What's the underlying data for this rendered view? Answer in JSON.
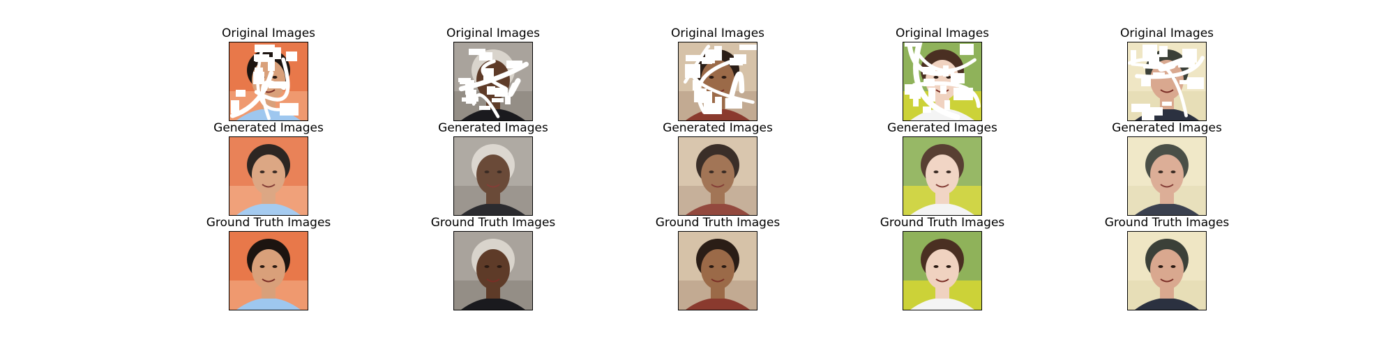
{
  "figure": {
    "columns": [
      {
        "rows": [
          {
            "title": "Original Images"
          },
          {
            "title": "Generated Images"
          },
          {
            "title": "Ground Truth Images"
          }
        ],
        "subject": "man-blue-shirt",
        "palette": {
          "bg": "#e8784a",
          "bg2": "#f2a77f",
          "skin": "#d9a07a",
          "hair": "#1c1410",
          "shirt": "#9ec7ef"
        }
      },
      {
        "rows": [
          {
            "title": "Original Images"
          },
          {
            "title": "Generated Images"
          },
          {
            "title": "Ground Truth Images"
          }
        ],
        "subject": "man-glasses-suit",
        "palette": {
          "bg": "#a9a39c",
          "bg2": "#8c857d",
          "skin": "#5e3b28",
          "hair": "#d9d4cc",
          "shirt": "#1a1a1e"
        }
      },
      {
        "rows": [
          {
            "title": "Original Images"
          },
          {
            "title": "Generated Images"
          },
          {
            "title": "Ground Truth Images"
          }
        ],
        "subject": "boy-curly-hair",
        "palette": {
          "bg": "#d6c2a8",
          "bg2": "#b9a089",
          "skin": "#9b6a48",
          "hair": "#2a1d16",
          "shirt": "#8a3a2e"
        }
      },
      {
        "rows": [
          {
            "title": "Original Images"
          },
          {
            "title": "Generated Images"
          },
          {
            "title": "Ground Truth Images"
          }
        ],
        "subject": "woman-long-hair",
        "palette": {
          "bg": "#8fb25a",
          "bg2": "#e6e02a",
          "skin": "#f0d2c0",
          "hair": "#4a2f22",
          "shirt": "#f4f4f4"
        }
      },
      {
        "rows": [
          {
            "title": "Original Images"
          },
          {
            "title": "Generated Images"
          },
          {
            "title": "Ground Truth Images"
          }
        ],
        "subject": "old-man-cap",
        "palette": {
          "bg": "#efe6c4",
          "bg2": "#e4dab2",
          "skin": "#d9a88f",
          "hair": "#3b4038",
          "shirt": "#2b3140"
        }
      }
    ]
  }
}
